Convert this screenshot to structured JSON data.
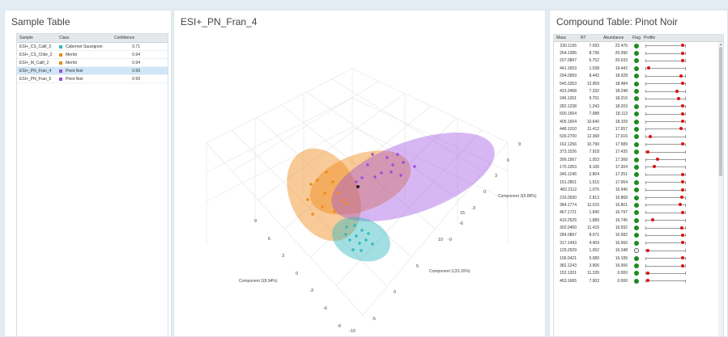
{
  "sample_panel": {
    "title": "Sample Table",
    "headers": {
      "sample": "Sample",
      "class": "Class",
      "confidence": "Confidence"
    },
    "rows": [
      {
        "sample": "ESI+_CS_Calif_3",
        "class": "Cabernet Sauvignon",
        "confidence": "0.71",
        "color": "#30b8c0",
        "selected": false
      },
      {
        "sample": "ESI+_CS_Chile_2",
        "class": "Merlot",
        "confidence": "0.94",
        "color": "#f08a18",
        "selected": false
      },
      {
        "sample": "ESI+_M_Calif_2",
        "class": "Merlot",
        "confidence": "0.94",
        "color": "#f08a18",
        "selected": false
      },
      {
        "sample": "ESI+_PN_Fran_4",
        "class": "Pinot Noir",
        "confidence": "0.99",
        "color": "#9a4be0",
        "selected": true
      },
      {
        "sample": "ESI+_PN_Fran_5",
        "class": "Pinot Noir",
        "confidence": "0.99",
        "color": "#9a4be0",
        "selected": false
      }
    ]
  },
  "plot_panel": {
    "title": "ESI+_PN_Fran_4",
    "axis_x_label": "Component 1(33.16%)",
    "axis_y_label": "Component 2(8.94%)",
    "axis_z_label": "Component 3(5.88%)",
    "ticks_z": [
      "9",
      "6",
      "3",
      "0",
      "-3",
      "-6",
      "-9"
    ],
    "ticks_x": [
      "15",
      "10",
      "5",
      "0",
      "-5",
      "-10"
    ],
    "ticks_y": [
      "9",
      "6",
      "3",
      "0",
      "-3",
      "-6",
      "-9"
    ],
    "colors": {
      "pinot": "#9a4be0",
      "merlot": "#f08a18",
      "cabernet": "#30b8c0"
    }
  },
  "compound_panel": {
    "title": "Compound Table: Pinot Noir",
    "headers": {
      "mass": "Mass",
      "rt": "RT",
      "abundance": "Abundance",
      "flag": "Flag",
      "profile": "Profile"
    },
    "rows": [
      {
        "mass": "230.1155",
        "rt": "7.093",
        "abundance": "22.476",
        "flag": true,
        "p": 0.92
      },
      {
        "mass": "264.1386",
        "rt": "8.736",
        "abundance": "20.996",
        "flag": true,
        "p": 0.92
      },
      {
        "mass": "207.0897",
        "rt": "5.752",
        "abundance": "20.633",
        "flag": true,
        "p": 0.92
      },
      {
        "mass": "441.1653",
        "rt": "1.038",
        "abundance": "19.442",
        "flag": true,
        "p": 0.08
      },
      {
        "mass": "294.0959",
        "rt": "8.442",
        "abundance": "18.928",
        "flag": true,
        "p": 0.88
      },
      {
        "mass": "540.3263",
        "rt": "12.959",
        "abundance": "18.484",
        "flag": true,
        "p": 0.92
      },
      {
        "mass": "423.2468",
        "rt": "7.332",
        "abundance": "18.248",
        "flag": true,
        "p": 0.78
      },
      {
        "mass": "246.1261",
        "rt": "9.701",
        "abundance": "18.216",
        "flag": true,
        "p": 0.82
      },
      {
        "mass": "282.1238",
        "rt": "1.243",
        "abundance": "18.203",
        "flag": true,
        "p": 0.92
      },
      {
        "mass": "500.1654",
        "rt": "7.088",
        "abundance": "18.113",
        "flag": true,
        "p": 0.92
      },
      {
        "mass": "405.1654",
        "rt": "10.640",
        "abundance": "18.109",
        "flag": true,
        "p": 0.92
      },
      {
        "mass": "448.1010",
        "rt": "11.412",
        "abundance": "17.657",
        "flag": true,
        "p": 0.88
      },
      {
        "mass": "530.2700",
        "rt": "12.368",
        "abundance": "17.616",
        "flag": true,
        "p": 0.12
      },
      {
        "mass": "162.1256",
        "rt": "10.790",
        "abundance": "17.589",
        "flag": true,
        "p": 0.92
      },
      {
        "mass": "373.1526",
        "rt": "7.918",
        "abundance": "17.435",
        "flag": true,
        "p": 0.06
      },
      {
        "mass": "399.1567",
        "rt": "1.053",
        "abundance": "17.368",
        "flag": true,
        "p": 0.3
      },
      {
        "mass": "170.1053",
        "rt": "9.106",
        "abundance": "17.304",
        "flag": true,
        "p": 0.22
      },
      {
        "mass": "346.1245",
        "rt": "2.804",
        "abundance": "17.251",
        "flag": true,
        "p": 0.92
      },
      {
        "mass": "151.2851",
        "rt": "1.515",
        "abundance": "17.064",
        "flag": true,
        "p": 0.92
      },
      {
        "mass": "482.2112",
        "rt": "1.076",
        "abundance": "16.946",
        "flag": true,
        "p": 0.92
      },
      {
        "mass": "216.0930",
        "rt": "2.813",
        "abundance": "16.868",
        "flag": true,
        "p": 0.9
      },
      {
        "mass": "384.1774",
        "rt": "11.015",
        "abundance": "16.801",
        "flag": true,
        "p": 0.86
      },
      {
        "mass": "467.1721",
        "rt": "1.840",
        "abundance": "16.797",
        "flag": true,
        "p": 0.92
      },
      {
        "mass": "410.2525",
        "rt": "1.889",
        "abundance": "16.745",
        "flag": true,
        "p": 0.18
      },
      {
        "mass": "302.0450",
        "rt": "11.415",
        "abundance": "16.592",
        "flag": true,
        "p": 0.9
      },
      {
        "mass": "284.0897",
        "rt": "8.071",
        "abundance": "16.582",
        "flag": true,
        "p": 0.92
      },
      {
        "mass": "317.1493",
        "rt": "4.409",
        "abundance": "16.566",
        "flag": true,
        "p": 0.92
      },
      {
        "mass": "129.2929",
        "rt": "1.052",
        "abundance": "16.348",
        "flag": false,
        "p": 0.06
      },
      {
        "mass": "106.0421",
        "rt": "5.080",
        "abundance": "16.189",
        "flag": true,
        "p": 0.92
      },
      {
        "mass": "382.1243",
        "rt": "3.906",
        "abundance": "16.006",
        "flag": true,
        "p": 0.92
      },
      {
        "mass": "152.1201",
        "rt": "11.326",
        "abundance": "0.000",
        "flag": true,
        "p": 0.06
      },
      {
        "mass": "463.1665",
        "rt": "7.902",
        "abundance": "0.000",
        "flag": true,
        "p": 0.06
      }
    ]
  }
}
